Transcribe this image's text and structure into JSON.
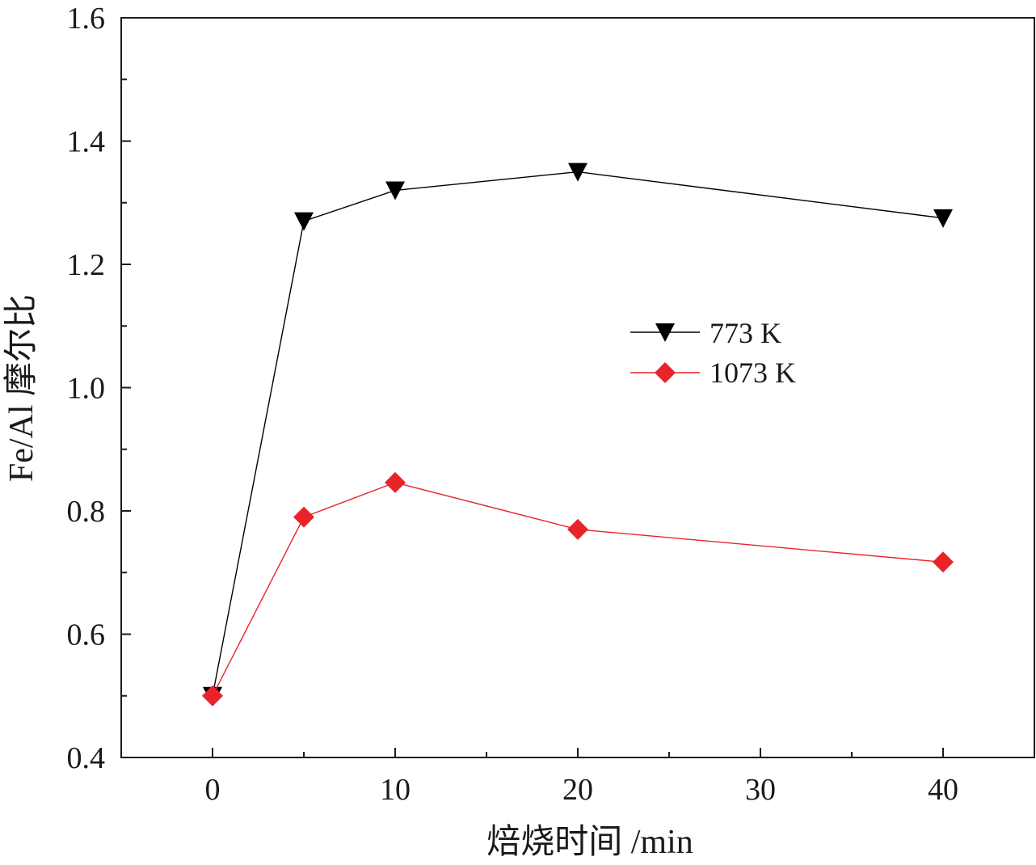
{
  "chart_data": {
    "type": "line",
    "xlabel": "焙烧时间 /min",
    "ylabel": "Fe/Al 摩尔比",
    "xlim": [
      -5,
      45
    ],
    "ylim": [
      0.4,
      1.6
    ],
    "x_ticks": [
      "0",
      "10",
      "20",
      "30",
      "40"
    ],
    "y_ticks": [
      "0.4",
      "0.6",
      "0.8",
      "1.0",
      "1.2",
      "1.4",
      "1.6"
    ],
    "legend_position": "center-right",
    "grid": false,
    "x": [
      0,
      5,
      10,
      20,
      40
    ],
    "series": [
      {
        "name": "773 K",
        "marker": "triangle-down",
        "color": "#000000",
        "values": [
          0.5,
          1.27,
          1.32,
          1.35,
          1.275
        ]
      },
      {
        "name": "1073 K",
        "marker": "diamond",
        "color": "#e8242a",
        "values": [
          0.5,
          0.79,
          0.846,
          0.77,
          0.717
        ]
      }
    ]
  }
}
